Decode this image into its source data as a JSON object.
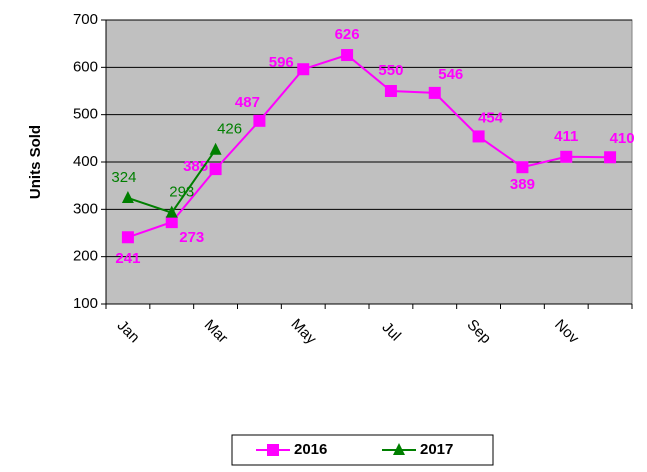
{
  "chart_data": {
    "type": "line",
    "y_label": "Units Sold",
    "categories": [
      "Jan",
      null,
      "Mar",
      null,
      "May",
      null,
      "Jul",
      null,
      "Sep",
      null,
      "Nov",
      null
    ],
    "series": [
      {
        "name": "2016",
        "color": "#ff00ff",
        "marker": "square",
        "values": [
          241,
          273,
          385,
          487,
          596,
          626,
          550,
          546,
          454,
          389,
          411,
          410
        ]
      },
      {
        "name": "2017",
        "color": "#007f00",
        "marker": "triangle",
        "values": [
          324,
          293,
          426,
          null,
          null,
          null,
          null,
          null,
          null,
          null,
          null,
          null
        ]
      }
    ],
    "ylim": [
      100,
      700
    ],
    "yticks": [
      100,
      200,
      300,
      400,
      500,
      600,
      700
    ],
    "grid": true,
    "legend": "bottom"
  }
}
